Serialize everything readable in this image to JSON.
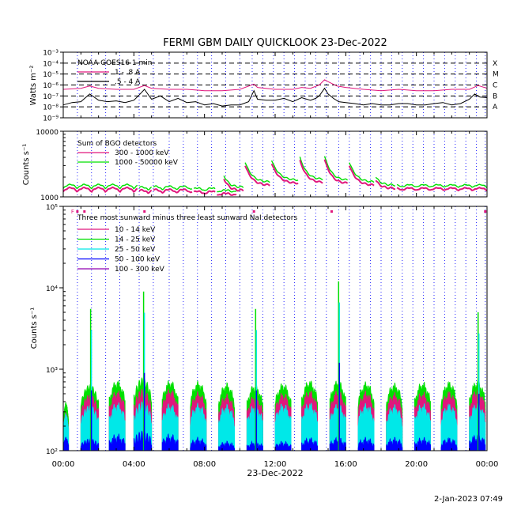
{
  "title": "FERMI GBM DAILY QUICKLOOK  23-Dec-2022",
  "footer_timestamp": "2-Jan-2023 07:49",
  "time_axis": {
    "range_hours": [
      0,
      24
    ],
    "tick_labels": [
      "00:00",
      "04:00",
      "08:00",
      "12:00",
      "16:00",
      "20:00",
      "00:00"
    ],
    "date_label": "23-Dec-2022",
    "occultation_lines_hours": [
      0.8,
      1.6,
      2.4,
      3.2,
      4.3,
      5.1,
      6.0,
      6.8,
      7.6,
      8.4,
      9.2,
      10.0,
      10.7,
      11.3,
      11.9,
      12.5,
      13.1,
      13.7,
      14.3,
      14.9,
      15.6,
      16.2,
      16.8,
      17.4,
      18.0,
      18.6,
      19.2,
      19.8,
      20.4,
      21.0,
      21.6,
      22.2,
      22.8,
      23.4,
      23.9
    ]
  },
  "chart_data": [
    {
      "type": "line",
      "panel": "goes",
      "ylabel": "Watts m⁻²",
      "yscale": "log",
      "ylim": [
        1e-09,
        0.001
      ],
      "ytick_labels": [
        "10⁻³",
        "10⁻⁴",
        "10⁻⁵",
        "10⁻⁶",
        "10⁻⁷",
        "10⁻⁸",
        "10⁻⁹"
      ],
      "flare_class_labels": [
        "X",
        "M",
        "C",
        "B",
        "A"
      ],
      "legend_title": "NOAA GOES16 1 min",
      "series": [
        {
          "name": "1 - .8 A",
          "color": "#e0177d",
          "x": [
            0,
            1,
            1.5,
            2,
            3,
            4,
            4.6,
            5,
            6,
            7,
            8,
            9,
            10,
            10.8,
            11,
            12,
            13,
            13.5,
            14,
            14.5,
            14.8,
            15,
            15.5,
            16,
            17,
            18,
            19,
            20,
            21,
            22,
            23,
            23.5,
            24
          ],
          "y": [
            4e-07,
            5e-07,
            8e-07,
            5e-07,
            4e-07,
            4e-07,
            9e-07,
            5e-07,
            4e-07,
            4e-07,
            3e-07,
            3e-07,
            4e-07,
            1.2e-06,
            6e-07,
            4e-07,
            4e-07,
            6e-07,
            5e-07,
            1e-06,
            3e-06,
            2e-06,
            8e-07,
            6e-07,
            4e-07,
            3e-07,
            4e-07,
            3e-07,
            3e-07,
            4e-07,
            4e-07,
            9e-07,
            5e-07
          ]
        },
        {
          "name": ".5 - 4 A",
          "color": "#000000",
          "x": [
            0,
            0.5,
            1,
            1.5,
            2,
            2.5,
            3,
            3.5,
            4,
            4.3,
            4.6,
            5,
            5.5,
            6,
            6.5,
            7,
            7.5,
            8,
            8.5,
            9,
            9.5,
            10,
            10.5,
            10.8,
            11,
            11.5,
            12,
            12.5,
            13,
            13.5,
            14,
            14.3,
            14.5,
            14.8,
            15,
            15.3,
            15.6,
            16,
            16.5,
            17,
            17.5,
            18,
            18.5,
            19,
            19.5,
            20,
            20.5,
            21,
            21.5,
            22,
            22.5,
            23,
            23.3,
            23.6,
            24
          ],
          "y": [
            1.5e-08,
            2.5e-08,
            3e-08,
            1.5e-07,
            4e-08,
            3e-08,
            3.5e-08,
            2.5e-08,
            4e-08,
            1.2e-07,
            4e-07,
            5e-08,
            1e-07,
            3e-08,
            6e-08,
            2.5e-08,
            3e-08,
            1.5e-08,
            2e-08,
            1.2e-08,
            1.5e-08,
            1.5e-08,
            3e-08,
            3e-07,
            5e-08,
            4e-08,
            4e-08,
            6e-08,
            3e-08,
            7e-08,
            4e-08,
            6e-08,
            1e-07,
            5e-07,
            1.5e-07,
            6e-08,
            3e-08,
            2.5e-08,
            2e-08,
            1.5e-08,
            2e-08,
            1.5e-08,
            1.5e-08,
            2e-08,
            2e-08,
            1.5e-08,
            1.5e-08,
            2e-08,
            2.5e-08,
            1.5e-08,
            2e-08,
            5e-08,
            1.5e-07,
            8e-08,
            7e-08
          ]
        }
      ]
    },
    {
      "type": "line",
      "panel": "bgo",
      "ylabel": "Counts s⁻¹",
      "yscale": "log",
      "ylim": [
        1000,
        10000
      ],
      "ytick_labels": [
        "10000",
        "1000"
      ],
      "legend_title": "Sum of BGO detectors",
      "series": [
        {
          "name": "300 - 1000 keV",
          "color": "#e0177d"
        },
        {
          "name": "1000 - 50000 keV",
          "color": "#00e000"
        }
      ],
      "segments": [
        {
          "x": [
            0.0,
            4.2
          ],
          "base": 1200,
          "hump": 180
        },
        {
          "x": [
            4.3,
            5.0
          ],
          "base": 1150,
          "hump": 120
        },
        {
          "x": [
            5.1,
            7.3
          ],
          "base": 1150,
          "hump": 150
        },
        {
          "x": [
            7.4,
            8.6
          ],
          "base": 1100,
          "hump": 120
        },
        {
          "x": [
            8.7,
            9.8
          ],
          "base": 1050,
          "hump": 90
        },
        {
          "x": [
            9.1,
            10.2
          ],
          "base": 1250,
          "spike": 1900
        },
        {
          "x": [
            10.3,
            11.7
          ],
          "base": 1500,
          "spike": 3000
        },
        {
          "x": [
            11.8,
            13.3
          ],
          "base": 1600,
          "spike": 3200
        },
        {
          "x": [
            13.4,
            14.7
          ],
          "base": 1650,
          "spike": 3600
        },
        {
          "x": [
            14.8,
            16.1
          ],
          "base": 1600,
          "spike": 3700
        },
        {
          "x": [
            16.2,
            17.6
          ],
          "base": 1500,
          "spike": 3000
        },
        {
          "x": [
            17.7,
            18.8
          ],
          "base": 1350,
          "spike": 1800
        },
        {
          "x": [
            18.9,
            24.0
          ],
          "base": 1250,
          "hump": 120
        }
      ]
    },
    {
      "type": "bar",
      "panel": "nai",
      "ylabel": "Counts s⁻¹",
      "yscale": "log",
      "ylim": [
        100,
        100000
      ],
      "ytick_labels": [
        "10⁵",
        "10⁴",
        "10³",
        "10²"
      ],
      "legend_title": "Three most sunward minus three least sunward NaI detectors",
      "series": [
        {
          "name": "10 - 14 keV",
          "color": "#e0177d"
        },
        {
          "name": "14 - 25 keV",
          "color": "#00e000"
        },
        {
          "name": "25 - 50 keV",
          "color": "#00e8e8"
        },
        {
          "name": "50 - 100 keV",
          "color": "#0000ff"
        },
        {
          "name": "100 - 300 keV",
          "color": "#9000b0"
        }
      ],
      "orbits": [
        {
          "start": 0.0,
          "end": 0.3,
          "green": 350,
          "magenta": 260,
          "cyan": 250,
          "blue": 130
        },
        {
          "start": 1.0,
          "end": 2.0,
          "green": 600,
          "magenta": 450,
          "cyan": 330,
          "blue": 130,
          "spike": 5500
        },
        {
          "start": 2.6,
          "end": 3.5,
          "green": 650,
          "magenta": 480,
          "cyan": 340,
          "blue": 140
        },
        {
          "start": 4.0,
          "end": 5.0,
          "green": 700,
          "magenta": 500,
          "cyan": 350,
          "blue": 150,
          "spike": 9000
        },
        {
          "start": 5.6,
          "end": 6.5,
          "green": 650,
          "magenta": 500,
          "cyan": 330,
          "blue": 140
        },
        {
          "start": 7.2,
          "end": 8.1,
          "green": 630,
          "magenta": 460,
          "cyan": 330,
          "blue": 130
        },
        {
          "start": 8.8,
          "end": 9.7,
          "green": 600,
          "magenta": 430,
          "cyan": 320,
          "blue": 120
        },
        {
          "start": 10.4,
          "end": 11.3,
          "green": 580,
          "magenta": 420,
          "cyan": 320,
          "blue": 120,
          "spike": 5500
        },
        {
          "start": 12.0,
          "end": 12.9,
          "green": 600,
          "magenta": 450,
          "cyan": 330,
          "blue": 120
        },
        {
          "start": 13.5,
          "end": 14.4,
          "green": 650,
          "magenta": 480,
          "cyan": 340,
          "blue": 130
        },
        {
          "start": 15.1,
          "end": 16.0,
          "green": 650,
          "magenta": 480,
          "cyan": 330,
          "blue": 130,
          "spike": 12000
        },
        {
          "start": 16.7,
          "end": 17.6,
          "green": 620,
          "magenta": 470,
          "cyan": 330,
          "blue": 130
        },
        {
          "start": 18.3,
          "end": 19.2,
          "green": 600,
          "magenta": 450,
          "cyan": 320,
          "blue": 130
        },
        {
          "start": 19.9,
          "end": 20.8,
          "green": 620,
          "magenta": 460,
          "cyan": 330,
          "blue": 130
        },
        {
          "start": 21.4,
          "end": 22.3,
          "green": 630,
          "magenta": 470,
          "cyan": 330,
          "blue": 130
        },
        {
          "start": 23.0,
          "end": 23.9,
          "green": 650,
          "magenta": 500,
          "cyan": 340,
          "blue": 140,
          "spike": 5000
        }
      ],
      "top_markers": [
        {
          "x": 0.8,
          "label": "F"
        },
        {
          "x": 1.2,
          "label": ""
        },
        {
          "x": 4.6,
          "label": ""
        },
        {
          "x": 10.8,
          "label": ""
        },
        {
          "x": 15.2,
          "label": ""
        },
        {
          "x": 23.9,
          "label": ""
        }
      ]
    }
  ]
}
